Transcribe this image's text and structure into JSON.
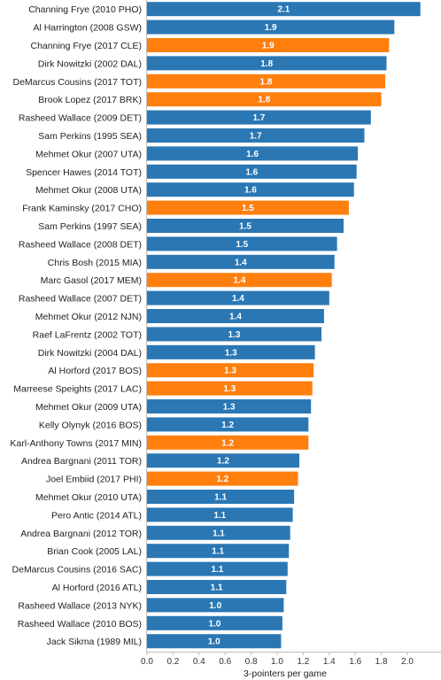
{
  "chart_data": {
    "type": "bar",
    "orientation": "horizontal",
    "xlabel": "3-pointers per game",
    "xlim": [
      0,
      2.2
    ],
    "xticks": [
      "0.0",
      "0.2",
      "0.4",
      "0.6",
      "0.8",
      "1.0",
      "1.2",
      "1.4",
      "1.6",
      "1.8",
      "2.0"
    ],
    "grid": false,
    "colors": {
      "default": "#2a77b4",
      "highlight": "#ff7f0e",
      "text": "#ffffff"
    },
    "bars": [
      {
        "label": "Channing Frye (2010 PHO)",
        "value": 2.1,
        "value_label": "2.1",
        "highlight": false
      },
      {
        "label": "Al Harrington (2008 GSW)",
        "value": 1.9,
        "value_label": "1.9",
        "highlight": false
      },
      {
        "label": "Channing Frye (2017 CLE)",
        "value": 1.86,
        "value_label": "1.9",
        "highlight": true
      },
      {
        "label": "Dirk Nowitzki (2002 DAL)",
        "value": 1.84,
        "value_label": "1.8",
        "highlight": false
      },
      {
        "label": "DeMarcus Cousins (2017 TOT)",
        "value": 1.83,
        "value_label": "1.8",
        "highlight": true
      },
      {
        "label": "Brook Lopez (2017 BRK)",
        "value": 1.8,
        "value_label": "1.8",
        "highlight": true
      },
      {
        "label": "Rasheed Wallace (2009 DET)",
        "value": 1.72,
        "value_label": "1.7",
        "highlight": false
      },
      {
        "label": "Sam Perkins (1995 SEA)",
        "value": 1.67,
        "value_label": "1.7",
        "highlight": false
      },
      {
        "label": "Mehmet Okur (2007 UTA)",
        "value": 1.62,
        "value_label": "1.6",
        "highlight": false
      },
      {
        "label": "Spencer Hawes (2014 TOT)",
        "value": 1.61,
        "value_label": "1.6",
        "highlight": false
      },
      {
        "label": "Mehmet Okur (2008 UTA)",
        "value": 1.59,
        "value_label": "1.6",
        "highlight": false
      },
      {
        "label": "Frank Kaminsky (2017 CHO)",
        "value": 1.55,
        "value_label": "1.5",
        "highlight": true
      },
      {
        "label": "Sam Perkins (1997 SEA)",
        "value": 1.51,
        "value_label": "1.5",
        "highlight": false
      },
      {
        "label": "Rasheed Wallace (2008 DET)",
        "value": 1.46,
        "value_label": "1.5",
        "highlight": false
      },
      {
        "label": "Chris Bosh (2015 MIA)",
        "value": 1.44,
        "value_label": "1.4",
        "highlight": false
      },
      {
        "label": "Marc Gasol (2017 MEM)",
        "value": 1.42,
        "value_label": "1.4",
        "highlight": true
      },
      {
        "label": "Rasheed Wallace (2007 DET)",
        "value": 1.4,
        "value_label": "1.4",
        "highlight": false
      },
      {
        "label": "Mehmet Okur (2012 NJN)",
        "value": 1.36,
        "value_label": "1.4",
        "highlight": false
      },
      {
        "label": "Raef LaFrentz (2002 TOT)",
        "value": 1.34,
        "value_label": "1.3",
        "highlight": false
      },
      {
        "label": "Dirk Nowitzki (2004 DAL)",
        "value": 1.29,
        "value_label": "1.3",
        "highlight": false
      },
      {
        "label": "Al Horford (2017 BOS)",
        "value": 1.28,
        "value_label": "1.3",
        "highlight": true
      },
      {
        "label": "Marreese Speights (2017 LAC)",
        "value": 1.27,
        "value_label": "1.3",
        "highlight": true
      },
      {
        "label": "Mehmet Okur (2009 UTA)",
        "value": 1.26,
        "value_label": "1.3",
        "highlight": false
      },
      {
        "label": "Kelly Olynyk (2016 BOS)",
        "value": 1.24,
        "value_label": "1.2",
        "highlight": false
      },
      {
        "label": "Karl-Anthony Towns (2017 MIN)",
        "value": 1.24,
        "value_label": "1.2",
        "highlight": true
      },
      {
        "label": "Andrea Bargnani (2011 TOR)",
        "value": 1.17,
        "value_label": "1.2",
        "highlight": false
      },
      {
        "label": "Joel Embiid (2017 PHI)",
        "value": 1.16,
        "value_label": "1.2",
        "highlight": true
      },
      {
        "label": "Mehmet Okur (2010 UTA)",
        "value": 1.13,
        "value_label": "1.1",
        "highlight": false
      },
      {
        "label": "Pero Antic (2014 ATL)",
        "value": 1.12,
        "value_label": "1.1",
        "highlight": false
      },
      {
        "label": "Andrea Bargnani (2012 TOR)",
        "value": 1.1,
        "value_label": "1.1",
        "highlight": false
      },
      {
        "label": "Brian Cook (2005 LAL)",
        "value": 1.09,
        "value_label": "1.1",
        "highlight": false
      },
      {
        "label": "DeMarcus Cousins (2016 SAC)",
        "value": 1.08,
        "value_label": "1.1",
        "highlight": false
      },
      {
        "label": "Al Horford (2016 ATL)",
        "value": 1.07,
        "value_label": "1.1",
        "highlight": false
      },
      {
        "label": "Rasheed Wallace (2013 NYK)",
        "value": 1.05,
        "value_label": "1.0",
        "highlight": false
      },
      {
        "label": "Rasheed Wallace (2010 BOS)",
        "value": 1.04,
        "value_label": "1.0",
        "highlight": false
      },
      {
        "label": "Jack Sikma (1989 MIL)",
        "value": 1.03,
        "value_label": "1.0",
        "highlight": false
      }
    ]
  }
}
